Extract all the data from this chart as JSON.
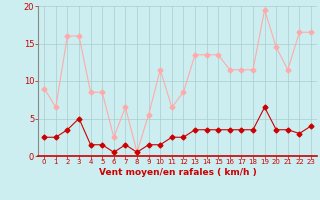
{
  "x": [
    0,
    1,
    2,
    3,
    4,
    5,
    6,
    7,
    8,
    9,
    10,
    11,
    12,
    13,
    14,
    15,
    16,
    17,
    18,
    19,
    20,
    21,
    22,
    23
  ],
  "wind_avg": [
    2.5,
    2.5,
    3.5,
    5.0,
    1.5,
    1.5,
    0.5,
    1.5,
    0.5,
    1.5,
    1.5,
    2.5,
    2.5,
    3.5,
    3.5,
    3.5,
    3.5,
    3.5,
    3.5,
    6.5,
    3.5,
    3.5,
    3.0,
    4.0
  ],
  "wind_gust": [
    9.0,
    6.5,
    16.0,
    16.0,
    8.5,
    8.5,
    2.5,
    6.5,
    0.5,
    5.5,
    11.5,
    6.5,
    8.5,
    13.5,
    13.5,
    13.5,
    11.5,
    11.5,
    11.5,
    19.5,
    14.5,
    11.5,
    16.5,
    16.5
  ],
  "ylim": [
    0,
    20
  ],
  "yticks": [
    0,
    5,
    10,
    15,
    20
  ],
  "xlabel": "Vent moyen/en rafales ( km/h )",
  "bg_color": "#cceef0",
  "grid_color": "#aacccc",
  "avg_color": "#cc0000",
  "gust_color": "#ffaaaa",
  "axis_color": "#888888"
}
